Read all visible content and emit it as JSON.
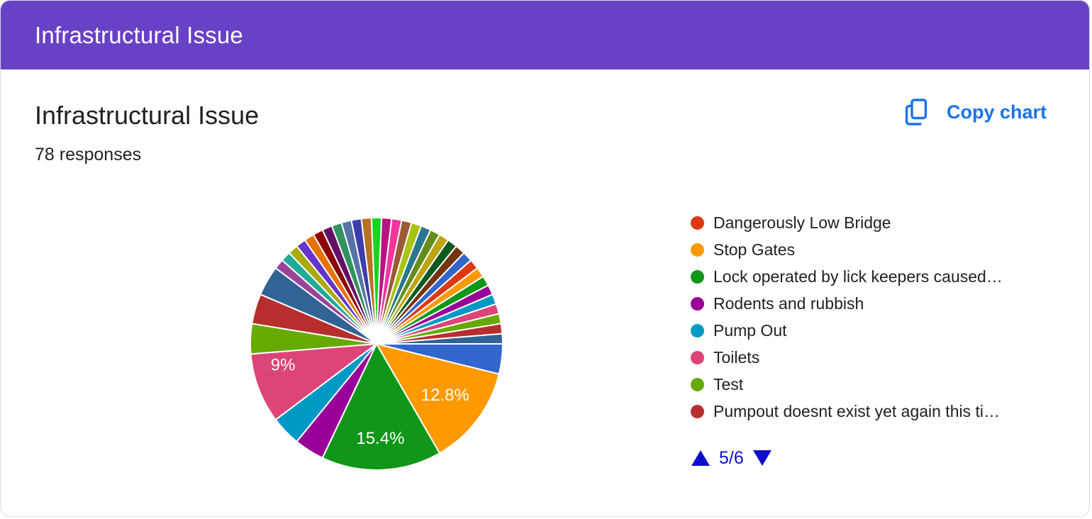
{
  "banner": {
    "title": "Infrastructural Issue"
  },
  "card": {
    "title": "Infrastructural Issue",
    "responses_label": "78 responses",
    "copy_button_label": "Copy chart",
    "accent_color": "#1a73e8",
    "banner_color": "#6842c6"
  },
  "chart_data": {
    "type": "pie",
    "title": "Infrastructural Issue",
    "total_responses": 78,
    "start_angle_deg": 0,
    "direction": "clockwise",
    "slices": [
      {
        "color": "#3366cc",
        "value": 3
      },
      {
        "color": "#ff9900",
        "value": 10,
        "percent_label": "12.8%"
      },
      {
        "color": "#109618",
        "value": 12,
        "percent_label": "15.4%"
      },
      {
        "color": "#990099",
        "value": 3
      },
      {
        "color": "#0099c6",
        "value": 3
      },
      {
        "color": "#dd4477",
        "value": 7,
        "percent_label": "9%"
      },
      {
        "color": "#66aa00",
        "value": 3
      },
      {
        "color": "#b82e2e",
        "value": 3
      },
      {
        "color": "#316395",
        "value": 3
      },
      {
        "color": "#994499",
        "value": 1
      },
      {
        "color": "#22aa99",
        "value": 1
      },
      {
        "color": "#aaaa11",
        "value": 1
      },
      {
        "color": "#6633cc",
        "value": 1
      },
      {
        "color": "#e67300",
        "value": 1
      },
      {
        "color": "#8b0707",
        "value": 1
      },
      {
        "color": "#651067",
        "value": 1
      },
      {
        "color": "#329262",
        "value": 1
      },
      {
        "color": "#5574a6",
        "value": 1
      },
      {
        "color": "#3b3eac",
        "value": 1
      },
      {
        "color": "#b77322",
        "value": 1
      },
      {
        "color": "#16d620",
        "value": 1
      },
      {
        "color": "#b91383",
        "value": 1
      },
      {
        "color": "#f4359e",
        "value": 1
      },
      {
        "color": "#9c5935",
        "value": 1
      },
      {
        "color": "#a9c413",
        "value": 1
      },
      {
        "color": "#2a778d",
        "value": 1
      },
      {
        "color": "#668d1c",
        "value": 1
      },
      {
        "color": "#bea413",
        "value": 1
      },
      {
        "color": "#0c5922",
        "value": 1
      },
      {
        "color": "#743411",
        "value": 1
      },
      {
        "color": "#3366cc",
        "value": 1
      },
      {
        "color": "#dc3912",
        "value": 1
      },
      {
        "color": "#ff9900",
        "value": 1
      },
      {
        "color": "#109618",
        "value": 1
      },
      {
        "color": "#990099",
        "value": 1
      },
      {
        "color": "#0099c6",
        "value": 1
      },
      {
        "color": "#dd4477",
        "value": 1
      },
      {
        "color": "#66aa00",
        "value": 1
      },
      {
        "color": "#b82e2e",
        "value": 1
      },
      {
        "color": "#316395",
        "value": 1
      }
    ],
    "legend": {
      "position": "right",
      "items": [
        {
          "label": "Dangerously Low Bridge",
          "color": "#dc3912"
        },
        {
          "label": "Stop Gates",
          "color": "#ff9900"
        },
        {
          "label": "Lock operated by lick keepers caused…",
          "color": "#109618"
        },
        {
          "label": "Rodents and rubbish",
          "color": "#990099"
        },
        {
          "label": "Pump Out",
          "color": "#0099c6"
        },
        {
          "label": "Toilets",
          "color": "#dd4477"
        },
        {
          "label": "Test",
          "color": "#66aa00"
        },
        {
          "label": "Pumpout doesnt exist yet again this ti…",
          "color": "#b82e2e"
        }
      ],
      "page_label": "5/6"
    }
  }
}
